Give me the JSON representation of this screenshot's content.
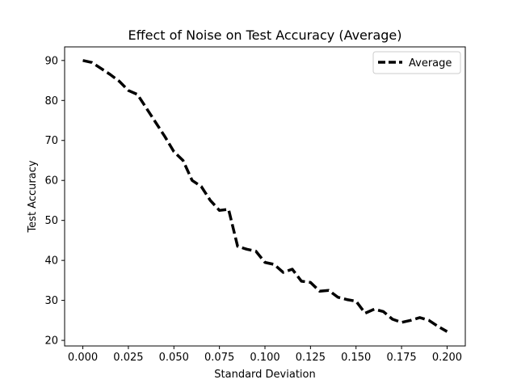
{
  "chart_data": {
    "type": "line",
    "title": "Effect of Noise on Test Accuracy (Average)",
    "xlabel": "Standard Deviation",
    "ylabel": "Test Accuracy",
    "xlim": [
      -0.01,
      0.21
    ],
    "ylim": [
      18.6,
      93.4
    ],
    "x_ticks": [
      0.0,
      0.025,
      0.05,
      0.075,
      0.1,
      0.125,
      0.15,
      0.175,
      0.2
    ],
    "x_tick_labels": [
      "0.000",
      "0.025",
      "0.050",
      "0.075",
      "0.100",
      "0.125",
      "0.150",
      "0.175",
      "0.200"
    ],
    "y_ticks": [
      20,
      30,
      40,
      50,
      60,
      70,
      80,
      90
    ],
    "y_tick_labels": [
      "20",
      "30",
      "40",
      "50",
      "60",
      "70",
      "80",
      "90"
    ],
    "grid": false,
    "legend_position": "top-right",
    "series": [
      {
        "name": "Average",
        "color": "#000000",
        "style": "dashed",
        "x": [
          0.0,
          0.005,
          0.01,
          0.015,
          0.02,
          0.025,
          0.03,
          0.035,
          0.04,
          0.045,
          0.05,
          0.055,
          0.06,
          0.065,
          0.07,
          0.075,
          0.08,
          0.085,
          0.09,
          0.095,
          0.1,
          0.105,
          0.11,
          0.115,
          0.12,
          0.125,
          0.13,
          0.135,
          0.14,
          0.145,
          0.15,
          0.155,
          0.16,
          0.165,
          0.17,
          0.175,
          0.18,
          0.185,
          0.19,
          0.195,
          0.2
        ],
        "y": [
          90.0,
          89.5,
          88.0,
          86.5,
          84.8,
          82.5,
          81.5,
          78.0,
          74.5,
          71.0,
          67.2,
          65.0,
          60.0,
          58.5,
          55.0,
          52.5,
          52.8,
          43.5,
          42.8,
          42.3,
          39.5,
          39.0,
          37.0,
          37.8,
          34.8,
          34.5,
          32.3,
          32.5,
          30.8,
          30.2,
          29.8,
          26.8,
          27.8,
          27.2,
          25.3,
          24.5,
          25.0,
          25.7,
          25.0,
          23.5,
          22.2
        ]
      }
    ]
  }
}
